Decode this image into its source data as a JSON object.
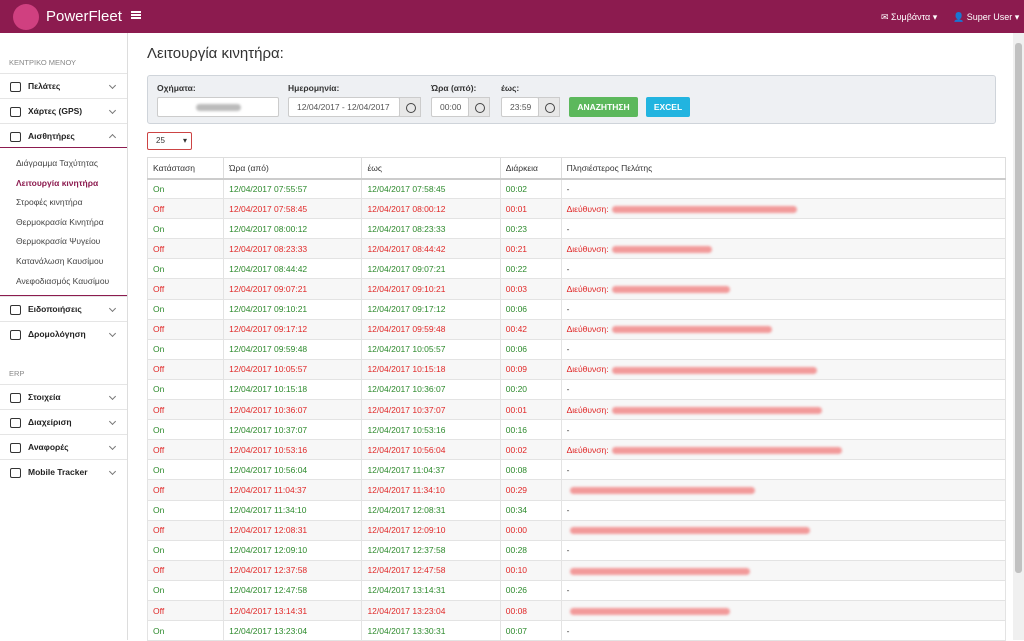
{
  "header": {
    "brand": "PowerFleet",
    "events": "Συμβάντα",
    "user": "Super User"
  },
  "sidebar": {
    "sections": [
      {
        "title": "ΚΕΝΤΡΙΚΟ ΜΕΝΟΥ",
        "items": [
          {
            "label": "Πελάτες"
          },
          {
            "label": "Χάρτες (GPS)"
          },
          {
            "label": "Αισθητήρες",
            "children": [
              {
                "label": "Διάγραμμα Ταχύτητας"
              },
              {
                "label": "Λειτουργία κινητήρα",
                "active": true
              },
              {
                "label": "Στροφές κινητήρα"
              },
              {
                "label": "Θερμοκρασία Κινητήρα"
              },
              {
                "label": "Θερμοκρασία Ψυγείου"
              },
              {
                "label": "Κατανάλωση Καυσίμου"
              },
              {
                "label": "Ανεφοδιασμός Καυσίμου"
              }
            ]
          },
          {
            "label": "Ειδοποιήσεις"
          },
          {
            "label": "Δρομολόγηση"
          }
        ]
      },
      {
        "title": "ERP",
        "items": [
          {
            "label": "Στοιχεία"
          },
          {
            "label": "Διαχείριση"
          },
          {
            "label": "Αναφορές"
          },
          {
            "label": "Mobile Tracker"
          }
        ]
      }
    ]
  },
  "page": {
    "title": "Λειτουργία κινητήρα:"
  },
  "filters": {
    "vehicles_label": "Οχήματα:",
    "date_label": "Ημερομηνία:",
    "date_value": "12/04/2017 - 12/04/2017",
    "from_label": "Ώρα (από):",
    "from_value": "00:00",
    "to_label": "έως:",
    "to_value": "23:59",
    "search": "ΑΝΑΖΗΤΗΣΗ",
    "excel": "EXCEL"
  },
  "page_size": "25",
  "table": {
    "columns": [
      "Κατάσταση",
      "Ώρα (από)",
      "έως",
      "Διάρκεια",
      "Πλησιέστερος Πελάτης"
    ],
    "rows": [
      [
        "On",
        "12/04/2017 07:55:57",
        "12/04/2017 07:58:45",
        "00:02",
        "-"
      ],
      [
        "Off",
        "12/04/2017 07:58:45",
        "12/04/2017 08:00:12",
        "00:01",
        "Διεύθυνση:"
      ],
      [
        "On",
        "12/04/2017 08:00:12",
        "12/04/2017 08:23:33",
        "00:23",
        "-"
      ],
      [
        "Off",
        "12/04/2017 08:23:33",
        "12/04/2017 08:44:42",
        "00:21",
        "Διεύθυνση:"
      ],
      [
        "On",
        "12/04/2017 08:44:42",
        "12/04/2017 09:07:21",
        "00:22",
        "-"
      ],
      [
        "Off",
        "12/04/2017 09:07:21",
        "12/04/2017 09:10:21",
        "00:03",
        "Διεύθυνση:"
      ],
      [
        "On",
        "12/04/2017 09:10:21",
        "12/04/2017 09:17:12",
        "00:06",
        "-"
      ],
      [
        "Off",
        "12/04/2017 09:17:12",
        "12/04/2017 09:59:48",
        "00:42",
        "Διεύθυνση:"
      ],
      [
        "On",
        "12/04/2017 09:59:48",
        "12/04/2017 10:05:57",
        "00:06",
        "-"
      ],
      [
        "Off",
        "12/04/2017 10:05:57",
        "12/04/2017 10:15:18",
        "00:09",
        "Διεύθυνση:"
      ],
      [
        "On",
        "12/04/2017 10:15:18",
        "12/04/2017 10:36:07",
        "00:20",
        "-"
      ],
      [
        "Off",
        "12/04/2017 10:36:07",
        "12/04/2017 10:37:07",
        "00:01",
        "Διεύθυνση:"
      ],
      [
        "On",
        "12/04/2017 10:37:07",
        "12/04/2017 10:53:16",
        "00:16",
        "-"
      ],
      [
        "Off",
        "12/04/2017 10:53:16",
        "12/04/2017 10:56:04",
        "00:02",
        "Διεύθυνση:"
      ],
      [
        "On",
        "12/04/2017 10:56:04",
        "12/04/2017 11:04:37",
        "00:08",
        "-"
      ],
      [
        "Off",
        "12/04/2017 11:04:37",
        "12/04/2017 11:34:10",
        "00:29"
      ],
      [
        "On",
        "12/04/2017 11:34:10",
        "12/04/2017 12:08:31",
        "00:34",
        "-"
      ],
      [
        "Off",
        "12/04/2017 12:08:31",
        "12/04/2017 12:09:10",
        "00:00"
      ],
      [
        "On",
        "12/04/2017 12:09:10",
        "12/04/2017 12:37:58",
        "00:28",
        "-"
      ],
      [
        "Off",
        "12/04/2017 12:37:58",
        "12/04/2017 12:47:58",
        "00:10"
      ],
      [
        "On",
        "12/04/2017 12:47:58",
        "12/04/2017 13:14:31",
        "00:26",
        "-"
      ],
      [
        "Off",
        "12/04/2017 13:14:31",
        "12/04/2017 13:23:04",
        "00:08"
      ],
      [
        "On",
        "12/04/2017 13:23:04",
        "12/04/2017 13:30:31",
        "00:07",
        "-"
      ]
    ]
  }
}
